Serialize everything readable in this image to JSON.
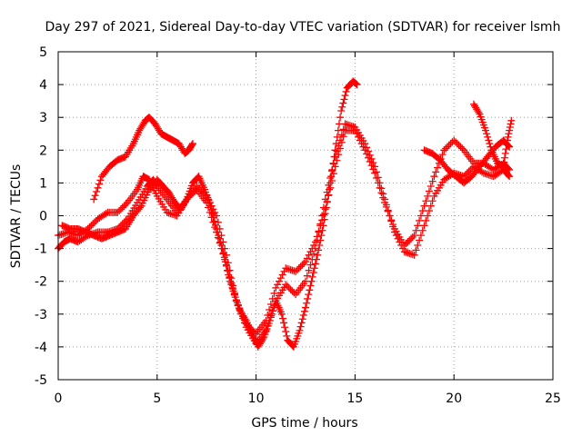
{
  "chart_data": {
    "type": "scatter",
    "title": "Day 297 of 2021, Sidereal Day-to-day VTEC variation (SDTVAR) for receiver lsmh",
    "xlabel": "GPS time / hours",
    "ylabel": "SDTVAR / TECUs",
    "xlim": [
      0,
      25
    ],
    "ylim": [
      -5,
      5
    ],
    "xticks": [
      0,
      5,
      10,
      15,
      20,
      25
    ],
    "yticks": [
      -5,
      -4,
      -3,
      -2,
      -1,
      0,
      1,
      2,
      3,
      4,
      5
    ],
    "grid": true,
    "legend": "none",
    "color": "#ff0000",
    "marker": "plus",
    "series": [
      {
        "x": [
          0.0,
          0.3,
          0.6,
          1.0,
          1.5,
          2.0,
          2.5,
          3.0,
          3.5,
          4.0,
          4.5,
          4.8,
          5.0,
          5.5,
          6.0,
          6.5,
          7.0,
          7.5,
          8.0,
          8.5,
          9.0,
          9.5,
          10.0,
          10.5,
          11.0,
          11.5,
          12.0,
          12.5,
          13.0,
          13.5,
          14.0,
          14.5,
          15.0,
          15.5,
          16.0,
          16.5,
          17.0,
          17.5,
          18.0,
          18.5,
          19.0,
          19.5,
          20.0,
          20.5,
          21.0,
          21.5,
          22.0,
          22.5,
          22.8
        ],
        "y": [
          -1.0,
          -0.8,
          -0.7,
          -0.8,
          -0.6,
          -0.5,
          -0.5,
          -0.4,
          -0.1,
          0.4,
          0.9,
          1.1,
          0.9,
          0.5,
          0.1,
          0.5,
          0.9,
          0.6,
          0.0,
          -1.2,
          -2.6,
          -3.4,
          -3.9,
          -3.5,
          -2.6,
          -2.1,
          -2.4,
          -2.0,
          -1.0,
          0.5,
          1.8,
          2.8,
          2.7,
          2.2,
          1.5,
          0.5,
          -0.5,
          -1.1,
          -1.2,
          -0.3,
          0.6,
          1.1,
          1.3,
          1.2,
          1.5,
          1.3,
          1.2,
          1.4,
          1.2
        ]
      },
      {
        "x": [
          0.0,
          0.5,
          1.0,
          1.5,
          2.0,
          2.5,
          3.0,
          3.5,
          4.0,
          4.3,
          4.6,
          5.0,
          5.5,
          6.0,
          6.5,
          7.0,
          7.5,
          8.0,
          8.5,
          9.0,
          9.5,
          10.0,
          10.5,
          11.0,
          11.5,
          12.0,
          12.5,
          13.0,
          13.5,
          14.0,
          14.5,
          15.0,
          15.5,
          16.0,
          16.5,
          17.0,
          17.5,
          18.0,
          18.5,
          19.0,
          19.5,
          20.0,
          20.5,
          21.0,
          21.5,
          22.0,
          22.5,
          22.8
        ],
        "y": [
          -0.6,
          -0.5,
          -0.6,
          -0.4,
          -0.1,
          0.1,
          0.1,
          0.4,
          0.8,
          1.2,
          1.1,
          0.6,
          0.1,
          0.0,
          0.5,
          0.8,
          0.4,
          -0.5,
          -1.5,
          -2.6,
          -3.3,
          -3.6,
          -3.2,
          -2.2,
          -1.6,
          -1.7,
          -1.4,
          -0.8,
          0.2,
          1.5,
          2.6,
          2.6,
          2.0,
          1.3,
          0.4,
          -0.4,
          -0.9,
          -0.6,
          0.3,
          1.2,
          2.0,
          2.3,
          2.0,
          1.6,
          1.6,
          1.4,
          1.6,
          1.4
        ]
      },
      {
        "x": [
          1.8,
          2.2,
          2.6,
          3.0,
          3.4,
          3.8,
          4.1,
          4.4,
          4.6,
          4.9,
          5.2,
          5.5,
          5.8,
          6.1,
          6.4,
          6.6,
          6.8
        ],
        "y": [
          0.5,
          1.2,
          1.5,
          1.7,
          1.8,
          2.2,
          2.6,
          2.9,
          3.0,
          2.8,
          2.5,
          2.4,
          2.3,
          2.2,
          1.9,
          2.0,
          2.2
        ]
      },
      {
        "x": [
          0.2,
          0.6,
          1.0,
          1.4,
          1.8,
          2.2,
          2.6,
          3.0,
          3.4,
          3.8,
          4.2,
          4.6,
          5.0,
          5.3,
          5.6,
          5.9,
          6.2,
          6.5,
          6.8,
          7.1,
          7.4,
          7.7,
          8.0,
          8.3,
          8.6,
          8.9,
          9.2,
          9.5,
          9.8,
          10.1,
          10.4,
          10.7,
          11.0,
          11.3,
          11.6,
          11.9,
          12.2,
          12.5,
          12.8,
          13.1,
          13.4,
          13.7,
          14.0,
          14.3,
          14.6,
          14.9,
          15.1
        ],
        "y": [
          -0.3,
          -0.4,
          -0.4,
          -0.5,
          -0.6,
          -0.7,
          -0.6,
          -0.5,
          -0.4,
          0.0,
          0.3,
          0.8,
          1.1,
          0.9,
          0.7,
          0.4,
          0.2,
          0.5,
          1.0,
          1.2,
          0.8,
          0.3,
          -0.4,
          -1.0,
          -1.8,
          -2.4,
          -2.9,
          -3.2,
          -3.6,
          -4.0,
          -3.7,
          -3.2,
          -2.6,
          -3.0,
          -3.8,
          -4.0,
          -3.5,
          -2.8,
          -2.0,
          -1.2,
          -0.3,
          0.8,
          2.0,
          3.2,
          3.9,
          4.1,
          4.0
        ]
      },
      {
        "x": [
          18.5,
          18.9,
          19.3,
          19.7,
          20.1,
          20.5,
          20.9,
          21.3,
          21.7,
          22.1,
          22.5,
          22.8
        ],
        "y": [
          2.0,
          1.9,
          1.7,
          1.4,
          1.2,
          1.0,
          1.2,
          1.5,
          1.8,
          2.1,
          2.3,
          2.1
        ]
      },
      {
        "x": [
          21.0,
          21.3,
          21.6,
          21.9,
          22.2,
          22.5,
          22.7,
          22.9
        ],
        "y": [
          3.4,
          3.1,
          2.6,
          2.0,
          1.6,
          1.5,
          2.3,
          2.9
        ]
      }
    ]
  }
}
